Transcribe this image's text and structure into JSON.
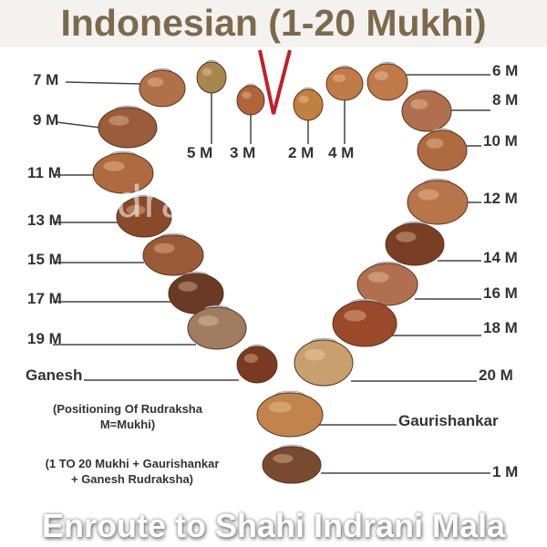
{
  "title": "Indonesian (1-20 Mukhi)",
  "watermark": "Rudrablessings",
  "labels": {
    "m7": "7 M",
    "m9": "9 M",
    "m11": "11 M",
    "m13": "13 M",
    "m15": "15 M",
    "m17": "17 M",
    "m19": "19 M",
    "ganesh": "Ganesh",
    "m5": "5 M",
    "m3": "3 M",
    "m2": "2 M",
    "m4": "4 M",
    "m6": "6 M",
    "m8": "8 M",
    "m10": "10 M",
    "m12": "12 M",
    "m14": "14 M",
    "m16": "16 M",
    "m18": "18 M",
    "m20": "20 M",
    "gaurishankar": "Gaurishankar",
    "m1": "1 M"
  },
  "notes": {
    "positioning_line1": "(Positioning Of Rudraksha",
    "positioning_line2": "M=Mukhi)",
    "contents_line1": "(1 TO 20 Mukhi + Gaurishankar",
    "contents_line2": "+ Ganesh Rudraksha)"
  },
  "footer": "Enroute to Shahi Indrani Mala",
  "colors": {
    "title": "#7d6a4e",
    "thread": "#c0202a",
    "bead": "#b0703e"
  }
}
